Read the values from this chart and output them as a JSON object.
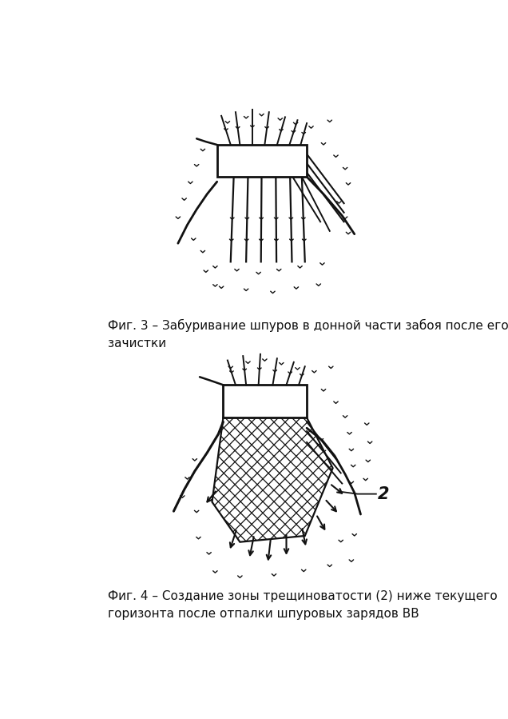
{
  "bg_color": "#ffffff",
  "line_color": "#111111",
  "caption3": "Фиг. 3 – Забуривание шпуров в донной части забоя после его\nзачистки",
  "caption4": "Фиг. 4 – Создание зоны трещиноватости (2) ниже текущего\nгоризонта после отпалки шпуровых зарядов ВВ"
}
